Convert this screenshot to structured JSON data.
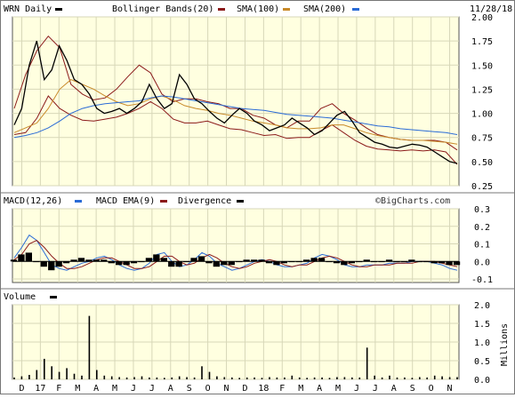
{
  "header": {
    "symbol_label": "WRN Daily",
    "date": "11/28/18"
  },
  "legend": {
    "bollinger": "Bollinger Bands(20)",
    "sma100": "SMA(100)",
    "sma200": "SMA(200)"
  },
  "colors": {
    "plot_bg": "#ffffe0",
    "price": "#000000",
    "bollinger": "#8b1a1a",
    "sma100": "#c88a2a",
    "sma200": "#2a6bd6",
    "macd": "#2a6bd6",
    "macd_ema": "#8b1a1a",
    "divergence": "#000000",
    "volume": "#000000"
  },
  "chart_data": [
    {
      "type": "line",
      "panel": "price",
      "x_labels": [
        "D",
        "17",
        "F",
        "M",
        "A",
        "M",
        "J",
        "J",
        "A",
        "S",
        "O",
        "N",
        "D",
        "18",
        "F",
        "M",
        "A",
        "M",
        "J",
        "J",
        "A",
        "S",
        "O",
        "N"
      ],
      "y_ticks": [
        "2.00",
        "1.75",
        "1.50",
        "1.25",
        "1.00",
        "0.75",
        "0.50",
        "0.25"
      ],
      "ylim": [
        0.25,
        2.0
      ],
      "grid": true,
      "series": [
        {
          "name": "Bollinger Bands(20)",
          "role": "upper",
          "values": [
            1.05,
            1.4,
            1.65,
            1.8,
            1.68,
            1.3,
            1.2,
            1.14,
            1.16,
            1.25,
            1.38,
            1.5,
            1.42,
            1.2,
            1.12,
            1.15,
            1.15,
            1.12,
            1.1,
            1.05,
            1.05,
            0.98,
            0.95,
            0.88,
            0.85,
            0.92,
            0.92,
            1.05,
            1.1,
            1.0,
            0.93,
            0.85,
            0.78,
            0.75,
            0.73,
            0.72,
            0.72,
            0.72,
            0.7,
            0.62
          ]
        },
        {
          "name": "Bollinger Bands(20)",
          "role": "lower",
          "values": [
            0.78,
            0.8,
            0.95,
            1.18,
            1.05,
            0.98,
            0.93,
            0.92,
            0.94,
            0.96,
            1.0,
            1.05,
            1.12,
            1.05,
            0.94,
            0.9,
            0.9,
            0.92,
            0.88,
            0.84,
            0.83,
            0.8,
            0.77,
            0.78,
            0.74,
            0.75,
            0.75,
            0.82,
            0.88,
            0.8,
            0.72,
            0.66,
            0.63,
            0.62,
            0.61,
            0.62,
            0.61,
            0.62,
            0.6,
            0.47
          ]
        },
        {
          "name": "SMA(100)",
          "values": [
            0.8,
            0.85,
            0.9,
            1.05,
            1.25,
            1.35,
            1.3,
            1.25,
            1.18,
            1.12,
            1.08,
            1.1,
            1.15,
            1.18,
            1.14,
            1.08,
            1.05,
            1.03,
            1.0,
            0.98,
            0.95,
            0.92,
            0.9,
            0.88,
            0.85,
            0.84,
            0.84,
            0.85,
            0.88,
            0.88,
            0.84,
            0.8,
            0.77,
            0.75,
            0.73,
            0.72,
            0.72,
            0.71,
            0.7,
            0.68
          ]
        },
        {
          "name": "SMA(200)",
          "values": [
            0.75,
            0.77,
            0.8,
            0.85,
            0.92,
            1.0,
            1.05,
            1.08,
            1.1,
            1.11,
            1.12,
            1.13,
            1.16,
            1.18,
            1.17,
            1.15,
            1.13,
            1.11,
            1.09,
            1.07,
            1.05,
            1.04,
            1.03,
            1.01,
            0.99,
            0.98,
            0.97,
            0.96,
            0.95,
            0.93,
            0.91,
            0.89,
            0.87,
            0.86,
            0.84,
            0.83,
            0.82,
            0.81,
            0.8,
            0.78
          ]
        },
        {
          "name": "Price",
          "values": [
            0.88,
            1.05,
            1.5,
            1.75,
            1.35,
            1.45,
            1.7,
            1.55,
            1.35,
            1.3,
            1.2,
            1.05,
            1.0,
            1.02,
            1.05,
            1.0,
            1.05,
            1.12,
            1.3,
            1.15,
            1.05,
            1.1,
            1.4,
            1.3,
            1.15,
            1.1,
            1.02,
            0.95,
            0.9,
            0.98,
            1.05,
            1.0,
            0.92,
            0.88,
            0.82,
            0.85,
            0.88,
            0.95,
            0.9,
            0.85,
            0.78,
            0.82,
            0.9,
            0.98,
            1.02,
            0.92,
            0.8,
            0.75,
            0.7,
            0.68,
            0.65,
            0.64,
            0.66,
            0.68,
            0.67,
            0.65,
            0.6,
            0.55,
            0.5,
            0.48
          ]
        }
      ]
    },
    {
      "type": "line",
      "panel": "macd",
      "title": "MACD(12,26)",
      "y_ticks": [
        "0.3",
        "0.2",
        "0.1",
        "0.0",
        "-0.1"
      ],
      "ylim": [
        -0.12,
        0.3
      ],
      "series": [
        {
          "name": "MACD(12,26)",
          "values": [
            0.02,
            0.08,
            0.15,
            0.12,
            0.05,
            -0.02,
            -0.04,
            -0.05,
            -0.03,
            -0.01,
            0.0,
            0.02,
            0.03,
            0.01,
            -0.02,
            -0.04,
            -0.05,
            -0.04,
            -0.01,
            0.04,
            0.05,
            0.0,
            -0.03,
            -0.02,
            0.01,
            0.05,
            0.03,
            -0.01,
            -0.03,
            -0.05,
            -0.04,
            -0.02,
            0.0,
            0.01,
            0.0,
            -0.02,
            -0.03,
            -0.03,
            -0.02,
            -0.01,
            0.02,
            0.04,
            0.03,
            0.01,
            -0.02,
            -0.03,
            -0.03,
            -0.02,
            -0.02,
            -0.02,
            -0.01,
            -0.01,
            -0.01,
            0.0,
            0.0,
            0.0,
            -0.01,
            -0.02,
            -0.04,
            -0.05
          ]
        },
        {
          "name": "MACD EMA(9)",
          "values": [
            0.01,
            0.04,
            0.1,
            0.12,
            0.08,
            0.03,
            -0.01,
            -0.04,
            -0.04,
            -0.03,
            -0.01,
            0.01,
            0.02,
            0.02,
            0.0,
            -0.02,
            -0.04,
            -0.04,
            -0.03,
            0.0,
            0.03,
            0.03,
            0.0,
            -0.02,
            -0.01,
            0.02,
            0.04,
            0.02,
            -0.01,
            -0.03,
            -0.04,
            -0.03,
            -0.01,
            0.0,
            0.01,
            0.0,
            -0.02,
            -0.03,
            -0.02,
            -0.02,
            0.0,
            0.02,
            0.03,
            0.02,
            0.0,
            -0.02,
            -0.03,
            -0.03,
            -0.02,
            -0.02,
            -0.02,
            -0.01,
            -0.01,
            -0.01,
            0.0,
            0.0,
            0.0,
            -0.01,
            -0.02,
            -0.03
          ]
        },
        {
          "name": "Divergence",
          "values": [
            0.01,
            0.04,
            0.05,
            0.0,
            -0.03,
            -0.05,
            -0.03,
            -0.01,
            0.01,
            0.02,
            0.01,
            0.01,
            0.01,
            -0.01,
            -0.02,
            -0.02,
            -0.01,
            0.0,
            0.02,
            0.04,
            0.02,
            -0.03,
            -0.03,
            0.0,
            0.02,
            0.03,
            -0.01,
            -0.03,
            -0.02,
            -0.02,
            0.0,
            0.01,
            0.01,
            0.01,
            -0.01,
            -0.02,
            -0.01,
            0.0,
            0.0,
            0.01,
            0.02,
            0.02,
            0.0,
            -0.01,
            -0.02,
            -0.01,
            0.0,
            0.01,
            0.0,
            0.0,
            0.01,
            0.0,
            0.0,
            0.01,
            0.0,
            0.0,
            -0.01,
            -0.01,
            -0.02,
            -0.02
          ]
        }
      ]
    },
    {
      "type": "bar",
      "panel": "volume",
      "title": "Volume",
      "ylabel": "Millions",
      "y_ticks": [
        "2.0",
        "1.5",
        "1.0",
        "0.5",
        "0.0"
      ],
      "ylim": [
        0,
        2.0
      ],
      "values": [
        0.05,
        0.08,
        0.12,
        0.25,
        0.55,
        0.35,
        0.2,
        0.3,
        0.15,
        0.1,
        1.7,
        0.25,
        0.1,
        0.08,
        0.06,
        0.05,
        0.06,
        0.08,
        0.05,
        0.05,
        0.04,
        0.05,
        0.08,
        0.06,
        0.05,
        0.35,
        0.2,
        0.08,
        0.06,
        0.05,
        0.04,
        0.05,
        0.05,
        0.04,
        0.06,
        0.05,
        0.05,
        0.1,
        0.05,
        0.04,
        0.05,
        0.05,
        0.04,
        0.06,
        0.06,
        0.05,
        0.05,
        0.85,
        0.1,
        0.05,
        0.1,
        0.05,
        0.05,
        0.04,
        0.06,
        0.05,
        0.1,
        0.08,
        0.06,
        0.06
      ]
    }
  ],
  "macd_legend": {
    "macd": "MACD(12,26)",
    "ema": "MACD EMA(9)",
    "div": "Divergence"
  },
  "volume_legend": {
    "label": "Volume",
    "units": "Millions"
  },
  "watermark": "©BigCharts.com"
}
